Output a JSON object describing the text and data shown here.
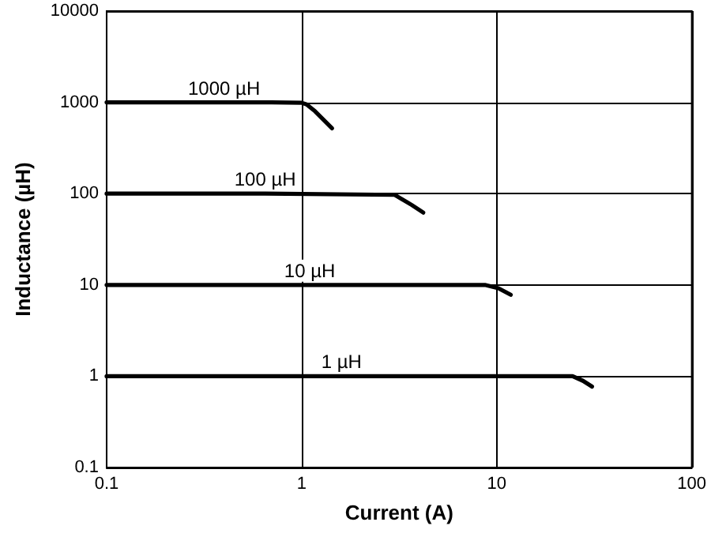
{
  "chart_data": {
    "type": "line",
    "xlabel": "Current (A)",
    "ylabel": "Inductance (µH)",
    "log": "xy",
    "grid": true,
    "marker": "none",
    "line_style": "solid",
    "xlim": [
      0.1,
      100
    ],
    "xticks": [
      0.1,
      1,
      10,
      100
    ],
    "ylim": [
      0.1,
      10000
    ],
    "yticks": [
      0.1,
      1,
      10,
      100,
      1000,
      10000
    ],
    "series": [
      {
        "name": "1000 µH",
        "color": "#000000",
        "x": [
          0.1,
          0.4,
          0.7,
          1.0,
          1.06,
          1.17,
          1.43
        ],
        "values": [
          1000,
          1000,
          1000,
          990,
          950,
          800,
          520
        ]
      },
      {
        "name": "100 µH",
        "color": "#000000",
        "x": [
          0.1,
          0.65,
          3.0,
          3.67,
          4.2
        ],
        "values": [
          100,
          100,
          97,
          75,
          62
        ]
      },
      {
        "name": "10 µH",
        "color": "#000000",
        "x": [
          0.1,
          1.1,
          8.7,
          10.2,
          11.8
        ],
        "values": [
          10,
          10,
          10,
          9.2,
          7.8
        ]
      },
      {
        "name": "1 µH",
        "color": "#000000",
        "x": [
          0.1,
          1.6,
          24.5,
          27.7,
          30.8
        ],
        "values": [
          1,
          1,
          1,
          0.89,
          0.77
        ]
      }
    ]
  }
}
